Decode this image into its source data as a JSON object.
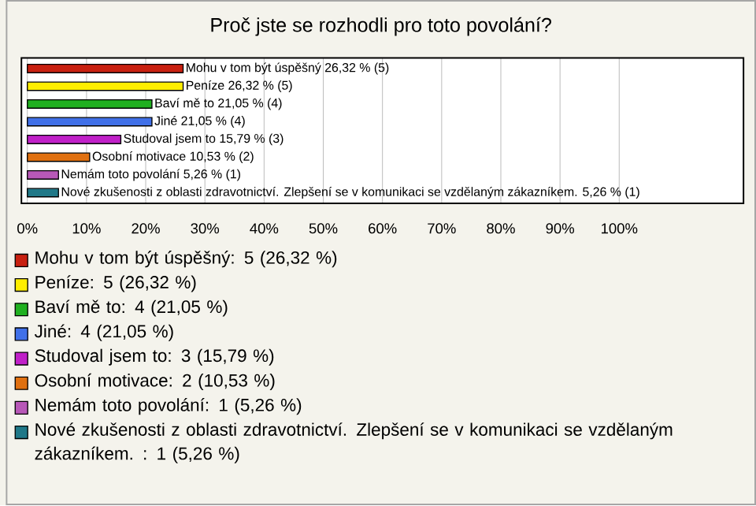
{
  "chart_data": {
    "type": "bar",
    "orientation": "horizontal",
    "title": "Proč jste se rozhodli pro toto povolání?",
    "categories": [
      "Mohu v tom být úspěšný 26,32 % (5)",
      "Peníze 26,32 % (5)",
      "Baví mě to 21,05 % (4)",
      "Jiné 21,05 % (4)",
      "Studoval jsem to 15,79 % (3)",
      "Osobní motivace 10,53 % (2)",
      "Nemám toto povolání 5,26 % (1)",
      "Nové zkušenosti z oblasti zdravotnictví. Zlepšení se v komunikaci se vzdělaným zákazníkem.  5,26 % (1)"
    ],
    "values": [
      26.32,
      26.32,
      21.05,
      21.05,
      15.79,
      10.53,
      5.26,
      5.26
    ],
    "colors": [
      "#c82010",
      "#ffee00",
      "#20b020",
      "#4070e8",
      "#c020c8",
      "#e07010",
      "#b858b8",
      "#207888"
    ],
    "xlim": [
      -1,
      121
    ],
    "xticks": [
      {
        "value": 0,
        "label": "0%"
      },
      {
        "value": 10,
        "label": "10%"
      },
      {
        "value": 20,
        "label": "20%"
      },
      {
        "value": 30,
        "label": "30%"
      },
      {
        "value": 40,
        "label": "40%"
      },
      {
        "value": 50,
        "label": "50%"
      },
      {
        "value": 60,
        "label": "60%"
      },
      {
        "value": 70,
        "label": "70%"
      },
      {
        "value": 80,
        "label": "80%"
      },
      {
        "value": 90,
        "label": "90%"
      },
      {
        "value": 100,
        "label": "100%"
      }
    ],
    "grid": "x",
    "annotations": [
      "Mohu v tom být úspěšný: 5 (26,32 %)",
      "Peníze: 5 (26,32 %)",
      "Baví mě to: 4 (21,05 %)",
      "Jiné: 4 (21,05 %)",
      "Studoval jsem to: 3 (15,79 %)",
      "Osobní motivace: 2 (10,53 %)",
      "Nemám toto povolání: 1 (5,26 %)",
      "Nové zkušenosti z oblasti zdravotnictví. Zlepšení se v komunikaci se vzdělaným zákazníkem. : 1 (5,26 %)"
    ]
  }
}
